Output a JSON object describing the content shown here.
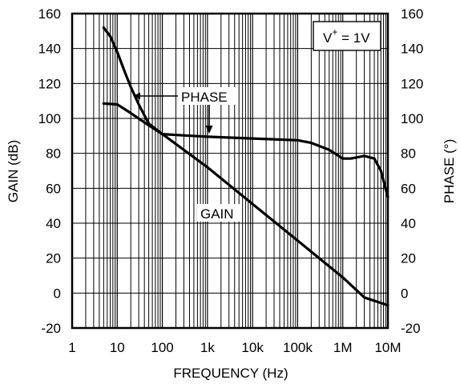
{
  "chart_data": {
    "type": "line",
    "xlabel": "FREQUENCY (Hz)",
    "ylabel": "GAIN (dB)",
    "y2label": "PHASE (°)",
    "xscale": "log",
    "xlim": [
      1,
      10000000
    ],
    "ylim": [
      -20,
      160
    ],
    "y2lim": [
      -20,
      160
    ],
    "grid": true,
    "x_ticks": [
      {
        "value": 1,
        "label": "1"
      },
      {
        "value": 10,
        "label": "10"
      },
      {
        "value": 100,
        "label": "100"
      },
      {
        "value": 1000,
        "label": "1k"
      },
      {
        "value": 10000,
        "label": "10k"
      },
      {
        "value": 100000,
        "label": "100k"
      },
      {
        "value": 1000000,
        "label": "1M"
      },
      {
        "value": 10000000,
        "label": "10M"
      }
    ],
    "y_ticks": [
      {
        "value": 160,
        "label": "160"
      },
      {
        "value": 140,
        "label": "140"
      },
      {
        "value": 120,
        "label": "120"
      },
      {
        "value": 100,
        "label": "100"
      },
      {
        "value": 80,
        "label": "80"
      },
      {
        "value": 60,
        "label": "60"
      },
      {
        "value": 40,
        "label": "40"
      },
      {
        "value": 20,
        "label": "20"
      },
      {
        "value": 0,
        "label": "0"
      },
      {
        "value": -20,
        "label": "-20"
      }
    ],
    "y2_ticks": [
      {
        "value": 160,
        "label": "160"
      },
      {
        "value": 140,
        "label": "140"
      },
      {
        "value": 120,
        "label": "120"
      },
      {
        "value": 100,
        "label": "100"
      },
      {
        "value": 80,
        "label": "80"
      },
      {
        "value": 60,
        "label": "60"
      },
      {
        "value": 40,
        "label": "40"
      },
      {
        "value": 20,
        "label": "20"
      },
      {
        "value": 0,
        "label": "0"
      },
      {
        "value": -20,
        "label": "-20"
      }
    ],
    "annotations": {
      "condition_base": "V",
      "condition_sup": "+",
      "condition_rest": " = 1V",
      "phase_label": "PHASE",
      "gain_label": "GAIN"
    },
    "series": [
      {
        "name": "GAIN",
        "axis": "left",
        "x": [
          5,
          10,
          20,
          50,
          100,
          1000,
          10000,
          100000,
          1000000,
          3000000,
          10000000
        ],
        "y": [
          108.5,
          108,
          103,
          96,
          91,
          72,
          51,
          30,
          9,
          -2.5,
          -7
        ]
      },
      {
        "name": "PHASE",
        "axis": "right",
        "x": [
          5,
          7,
          10,
          15,
          20,
          30,
          50,
          100,
          200,
          1000,
          10000,
          100000,
          200000,
          500000,
          1000000,
          1500000,
          3000000,
          5000000,
          7000000,
          10000000
        ],
        "y": [
          152,
          147,
          138,
          126,
          118,
          108,
          97,
          91,
          90.5,
          89.5,
          88.5,
          87.5,
          86,
          82,
          77,
          77,
          78.5,
          77,
          70,
          55
        ]
      }
    ]
  }
}
